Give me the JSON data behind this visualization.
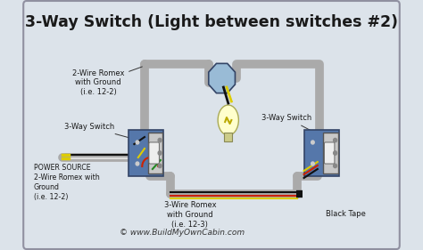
{
  "title": "3-Way Switch (Light between switches #2)",
  "bg_color": "#dce3ea",
  "border_color": "#9090a0",
  "wire_gray": "#aaaaaa",
  "wire_black": "#111111",
  "wire_white": "#dddddd",
  "wire_red": "#cc2200",
  "wire_yellow": "#ddcc00",
  "wire_green": "#228822",
  "label_power": "POWER SOURCE\n2-Wire Romex with\nGround\n(i.e. 12-2)",
  "label_2wire": "2-Wire Romex\nwith Ground\n(i.e. 12-2)",
  "label_3wire": "3-Wire Romex\nwith Ground\n(i.e. 12-3)",
  "label_switch_left": "3-Way Switch",
  "label_switch_right": "3-Way Switch",
  "label_black_tape": "Black Tape",
  "label_website": "© www.BuildMyOwnCabin.com",
  "title_fontsize": 12.5,
  "label_fontsize": 6.0
}
